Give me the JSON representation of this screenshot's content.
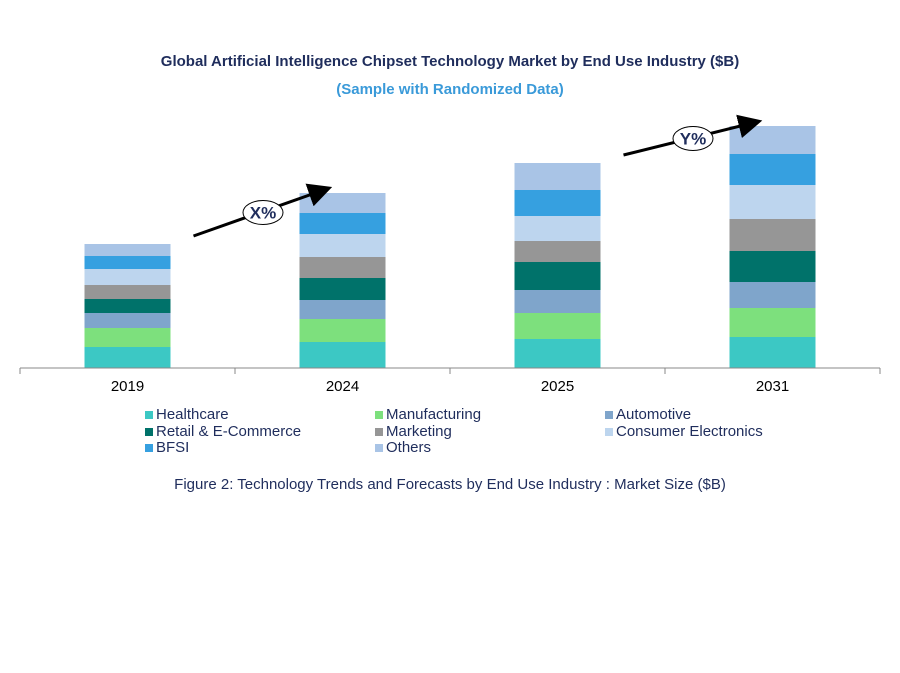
{
  "chart_data": {
    "type": "bar",
    "stacked": true,
    "title": "Global Artificial Intelligence Chipset Technology Market by End Use Industry ($B)",
    "subtitle": "(Sample with Randomized Data)",
    "caption": "Figure 2: Technology  Trends  and Forecasts by End Use Industry   : Market Size ($B)",
    "categories": [
      "2019",
      "2024",
      "2025",
      "2031"
    ],
    "ylim": [
      0,
      26
    ],
    "grid": false,
    "legend_position": "bottom",
    "annotations": [
      {
        "text": "X%",
        "between": [
          "2019",
          "2024"
        ]
      },
      {
        "text": "Y%",
        "between": [
          "2025",
          "2031"
        ]
      }
    ],
    "series": [
      {
        "name": "Healthcare",
        "color": "#3CC8C4",
        "values": [
          2.1,
          2.6,
          2.9,
          3.1
        ]
      },
      {
        "name": "Manufacturing",
        "color": "#7DE07D",
        "values": [
          1.9,
          2.3,
          2.6,
          2.9
        ]
      },
      {
        "name": "Automotive",
        "color": "#7FA5CB",
        "values": [
          1.5,
          1.9,
          2.3,
          2.6
        ]
      },
      {
        "name": "Retail & E-Commerce",
        "color": "#00726A",
        "values": [
          1.4,
          2.2,
          2.8,
          3.1
        ]
      },
      {
        "name": "Marketing",
        "color": "#969696",
        "values": [
          1.4,
          2.1,
          2.1,
          3.2
        ]
      },
      {
        "name": "Consumer Electronics",
        "color": "#BDD5EE",
        "values": [
          1.6,
          2.3,
          2.5,
          3.4
        ]
      },
      {
        "name": "BFSI",
        "color": "#36A0E0",
        "values": [
          1.3,
          2.1,
          2.6,
          3.1
        ]
      },
      {
        "name": "Others",
        "color": "#A9C4E6",
        "values": [
          1.2,
          2.0,
          2.7,
          2.8
        ]
      }
    ]
  }
}
